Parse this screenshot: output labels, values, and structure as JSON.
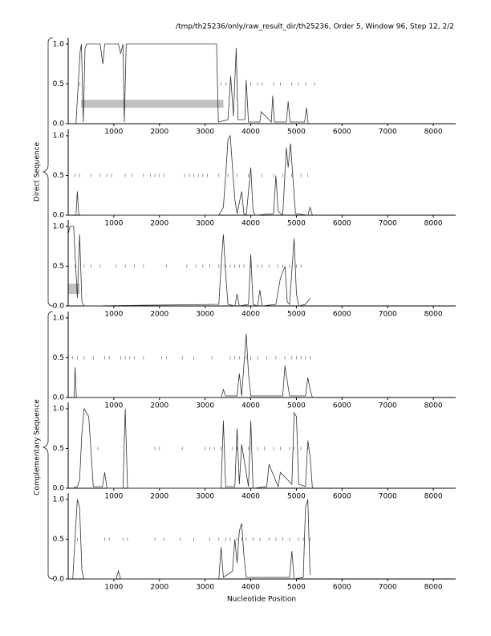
{
  "title": "/tmp/th25236/only/raw_result_dir/th25236, Order 5, Window 96, Step 12, 2/2",
  "ylabel_direct": "Direct Sequence",
  "ylabel_complementary": "Complementary Sequence",
  "xlabel": "Nucleotide Position",
  "chart_data": [
    {
      "type": "line",
      "xlim": [
        0,
        8490
      ],
      "ylim": [
        0,
        1.08
      ],
      "xticks": [
        1000,
        2000,
        3000,
        4000,
        5000,
        6000,
        7000,
        8000
      ],
      "yticks": [
        {
          "value": 0,
          "label": "0.0"
        },
        {
          "value": 0.5,
          "label": "0.5"
        },
        {
          "value": 1,
          "label": "1.0"
        }
      ],
      "x": [
        170,
        260,
        290,
        330,
        370,
        400,
        700,
        760,
        800,
        1100,
        1150,
        1200,
        1230,
        1270,
        3250,
        3290,
        3500,
        3560,
        3620,
        3680,
        3720,
        3870,
        3900,
        3950,
        4200,
        4230,
        4450,
        4480,
        4520,
        4780,
        4820,
        4860,
        5180,
        5220,
        5260
      ],
      "series": [
        {
          "color": "#333333",
          "values": [
            0,
            0.9,
            1.0,
            0.02,
            0.95,
            1.0,
            1.0,
            0.75,
            1.0,
            1.0,
            0.88,
            1.0,
            0.02,
            1.0,
            1.0,
            0.02,
            0.05,
            0.6,
            0.1,
            0.95,
            0.05,
            0.05,
            0.55,
            0.02,
            0.02,
            0.15,
            0.02,
            0.35,
            0.02,
            0.02,
            0.28,
            0.02,
            0.02,
            0.2,
            0
          ]
        }
      ],
      "marker_y": 0.5,
      "markers_x": [
        250,
        3350,
        3450,
        3550,
        3700,
        3900,
        4000,
        4150,
        4250,
        4500,
        4650,
        4900,
        5050,
        5200,
        5400
      ],
      "region": {
        "x": [
          280,
          3400
        ],
        "y": [
          0.2,
          0.3
        ],
        "color": "#c0c0c0"
      }
    },
    {
      "type": "line",
      "xlim": [
        0,
        8490
      ],
      "ylim": [
        0,
        1.08
      ],
      "xticks": [
        1000,
        2000,
        3000,
        4000,
        5000,
        6000,
        7000,
        8000
      ],
      "yticks": [
        {
          "value": 0,
          "label": "0.0"
        },
        {
          "value": 0.5,
          "label": "0.5"
        },
        {
          "value": 1,
          "label": "1.0"
        }
      ],
      "x": [
        170,
        200,
        230,
        260,
        3300,
        3400,
        3450,
        3500,
        3550,
        3600,
        3650,
        3700,
        3800,
        3850,
        3900,
        4000,
        4050,
        4100,
        4500,
        4550,
        4600,
        4700,
        4780,
        4820,
        4870,
        4920,
        4980,
        5250,
        5300,
        5350
      ],
      "series": [
        {
          "color": "#333333",
          "values": [
            0,
            0.3,
            0.02,
            0,
            0,
            0.1,
            0.5,
            0.95,
            1.0,
            0.6,
            0.2,
            0.02,
            0.3,
            0.02,
            0,
            0.6,
            0.05,
            0,
            0.02,
            0.5,
            0.05,
            0,
            0.85,
            0.6,
            0.9,
            0.5,
            0.02,
            0,
            0.1,
            0
          ]
        }
      ],
      "marker_y": 0.5,
      "markers_x": [
        150,
        250,
        500,
        700,
        850,
        950,
        1250,
        1400,
        1650,
        1800,
        1900,
        2000,
        2100,
        2550,
        2650,
        2750,
        2850,
        2950,
        3050,
        3300,
        3500,
        3700,
        3950,
        4250,
        4500,
        4700,
        4900,
        5100,
        5250
      ]
    },
    {
      "type": "line",
      "xlim": [
        0,
        8490
      ],
      "ylim": [
        0,
        1.08
      ],
      "xticks": [
        1000,
        2000,
        3000,
        4000,
        5000,
        6000,
        7000,
        8000
      ],
      "yticks": [
        {
          "value": 0,
          "label": "0.0"
        },
        {
          "value": 0.5,
          "label": "0.5"
        },
        {
          "value": 1,
          "label": "1.0"
        }
      ],
      "x": [
        0,
        40,
        120,
        200,
        250,
        300,
        350,
        400,
        3300,
        3350,
        3400,
        3450,
        3500,
        3650,
        3700,
        3750,
        3950,
        4000,
        4050,
        4150,
        4200,
        4250,
        4550,
        4650,
        4750,
        4800,
        4850,
        4950,
        5000,
        5050,
        5200,
        5300
      ],
      "series": [
        {
          "color": "#333333",
          "values": [
            0.9,
            1.0,
            1.0,
            0.1,
            0.9,
            0.05,
            0,
            0,
            0.02,
            0.5,
            0.9,
            0.4,
            0.02,
            0,
            0.15,
            0,
            0.02,
            0.65,
            0.02,
            0,
            0.2,
            0,
            0.02,
            0.35,
            0.5,
            0.05,
            0.02,
            0.85,
            0.15,
            0,
            0.02,
            0.1
          ]
        }
      ],
      "marker_y": 0.5,
      "markers_x": [
        150,
        350,
        500,
        700,
        1050,
        1250,
        1450,
        1650,
        2150,
        2600,
        2800,
        2950,
        3100,
        3300,
        3450,
        3550,
        3650,
        3750,
        3850,
        4000,
        4150,
        4250,
        4400,
        4600,
        4700,
        4850,
        5000,
        5100
      ],
      "region": {
        "x": [
          0,
          250
        ],
        "y": [
          0.15,
          0.28
        ],
        "color": "#c0c0c0"
      }
    },
    {
      "type": "line",
      "xlim": [
        0,
        8490
      ],
      "ylim": [
        0,
        1.08
      ],
      "xticks": [
        1000,
        2000,
        3000,
        4000,
        5000,
        6000,
        7000,
        8000
      ],
      "yticks": [
        {
          "value": 0,
          "label": "0.0"
        },
        {
          "value": 0.5,
          "label": "0.5"
        },
        {
          "value": 1,
          "label": "1.0"
        }
      ],
      "x": [
        130,
        150,
        180,
        3350,
        3400,
        3450,
        3700,
        3750,
        3800,
        3850,
        3900,
        3950,
        4000,
        4700,
        4750,
        4800,
        4850,
        5200,
        5250,
        5300,
        5350
      ],
      "series": [
        {
          "color": "#333333",
          "values": [
            0,
            0.38,
            0,
            0,
            0.1,
            0.02,
            0.02,
            0.3,
            0.02,
            0.4,
            0.8,
            0.3,
            0.02,
            0.02,
            0.4,
            0.2,
            0.02,
            0.02,
            0.25,
            0.1,
            0
          ]
        }
      ],
      "marker_y": 0.5,
      "markers_x": [
        100,
        200,
        350,
        550,
        800,
        900,
        1150,
        1250,
        1350,
        1450,
        1650,
        2050,
        2150,
        2500,
        2750,
        3150,
        3550,
        3650,
        3750,
        3900,
        4000,
        4150,
        4350,
        4550,
        4750,
        4900,
        5000,
        5100,
        5200,
        5300
      ]
    },
    {
      "type": "line",
      "xlim": [
        0,
        8490
      ],
      "ylim": [
        0,
        1.08
      ],
      "xticks": [
        1000,
        2000,
        3000,
        4000,
        5000,
        6000,
        7000,
        8000
      ],
      "yticks": [
        {
          "value": 0,
          "label": "0.0"
        },
        {
          "value": 0.5,
          "label": "0.5"
        },
        {
          "value": 1,
          "label": "1.0"
        }
      ],
      "x": [
        100,
        200,
        250,
        300,
        350,
        450,
        550,
        750,
        800,
        850,
        1200,
        1250,
        1300,
        3350,
        3400,
        3450,
        3650,
        3700,
        3750,
        3800,
        3950,
        4000,
        4050,
        4350,
        4400,
        4600,
        4650,
        4900,
        4950,
        5000,
        5050,
        5200,
        5250,
        5300,
        5350
      ],
      "series": [
        {
          "color": "#333333",
          "values": [
            0,
            0.02,
            0.1,
            0.7,
            1.0,
            0.9,
            0.02,
            0.02,
            0.2,
            0,
            0,
            1.0,
            0,
            0,
            0.85,
            0.02,
            0.02,
            0.75,
            0.05,
            0.55,
            0.02,
            0.85,
            0,
            0.02,
            0.3,
            0.02,
            0.2,
            0.05,
            0.95,
            0.9,
            0.05,
            0.02,
            0.6,
            0.4,
            0
          ]
        }
      ],
      "marker_y": 0.5,
      "markers_x": [
        650,
        1900,
        2000,
        2500,
        3000,
        3100,
        3200,
        3350,
        3600,
        3700,
        3800,
        3950,
        4150,
        4300,
        4500,
        4650,
        4850,
        4950,
        5100,
        5250
      ]
    },
    {
      "type": "line",
      "xlim": [
        0,
        8490
      ],
      "ylim": [
        0,
        1.08
      ],
      "xticks": [
        1000,
        2000,
        3000,
        4000,
        5000,
        6000,
        7000,
        8000
      ],
      "yticks": [
        {
          "value": 0,
          "label": "0.0"
        },
        {
          "value": 0.5,
          "label": "0.5"
        },
        {
          "value": 1,
          "label": "1.0"
        }
      ],
      "x": [
        100,
        150,
        200,
        250,
        300,
        350,
        1050,
        1100,
        1150,
        3300,
        3350,
        3400,
        3600,
        3650,
        3700,
        3750,
        3800,
        3850,
        3900,
        4850,
        4900,
        4950,
        5150,
        5200,
        5250,
        5300
      ],
      "series": [
        {
          "color": "#333333",
          "values": [
            0,
            0.5,
            1.0,
            0.9,
            0.1,
            0,
            0,
            0.1,
            0,
            0,
            0.4,
            0.02,
            0.1,
            0.5,
            0.2,
            0.6,
            0.7,
            0.3,
            0.02,
            0.02,
            0.35,
            0,
            0.02,
            0.9,
            1.0,
            0.05
          ]
        }
      ],
      "marker_y": 0.5,
      "markers_x": [
        200,
        800,
        900,
        1200,
        1300,
        1900,
        2100,
        2450,
        2750,
        3100,
        3300,
        3450,
        3550,
        3700,
        3800,
        3900,
        4050,
        4200,
        4400,
        4550,
        4700,
        4850,
        5050,
        5150,
        5300
      ]
    }
  ]
}
